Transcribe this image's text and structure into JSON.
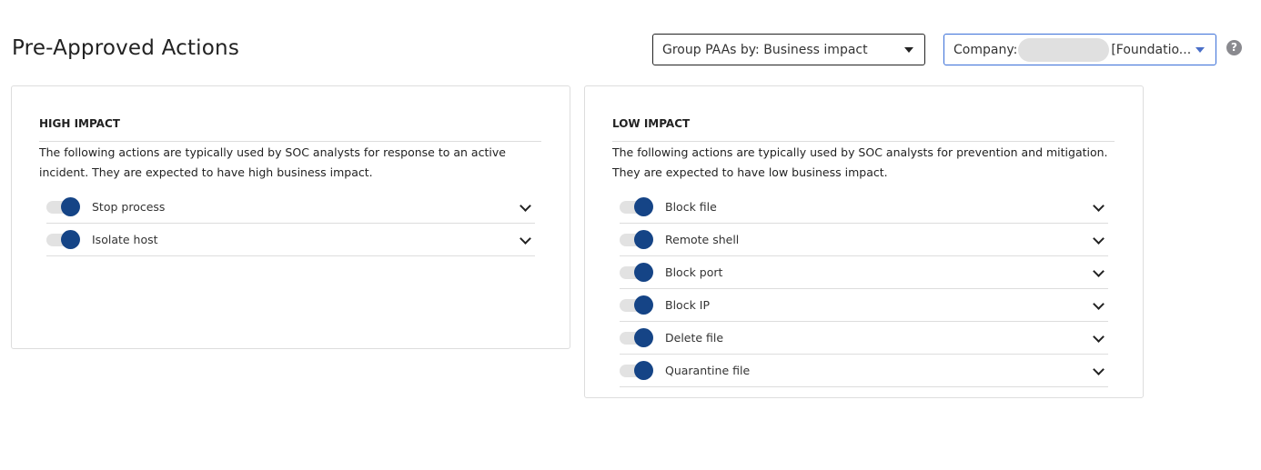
{
  "header": {
    "title": "Pre-Approved Actions",
    "group_by": "Group PAAs by: Business impact",
    "company_label": "Company:",
    "company_suffix": "[Foundatio...",
    "help_icon": "?"
  },
  "colors": {
    "toggle_on": "#154486",
    "accent_border": "#3a6fd8"
  },
  "groups": [
    {
      "title": "HIGH IMPACT",
      "description": "The following actions are typically used by SOC analysts for response to an active incident. They are expected to have high business impact.",
      "actions": [
        {
          "label": "Stop process",
          "enabled": true
        },
        {
          "label": "Isolate host",
          "enabled": true
        }
      ]
    },
    {
      "title": "LOW IMPACT",
      "description": "The following actions are typically used by SOC analysts for prevention and mitigation. They are expected to have low business impact.",
      "actions": [
        {
          "label": "Block file",
          "enabled": true
        },
        {
          "label": "Remote shell",
          "enabled": true
        },
        {
          "label": "Block port",
          "enabled": true
        },
        {
          "label": "Block IP",
          "enabled": true
        },
        {
          "label": "Delete file",
          "enabled": true
        },
        {
          "label": "Quarantine file",
          "enabled": true
        }
      ]
    }
  ]
}
